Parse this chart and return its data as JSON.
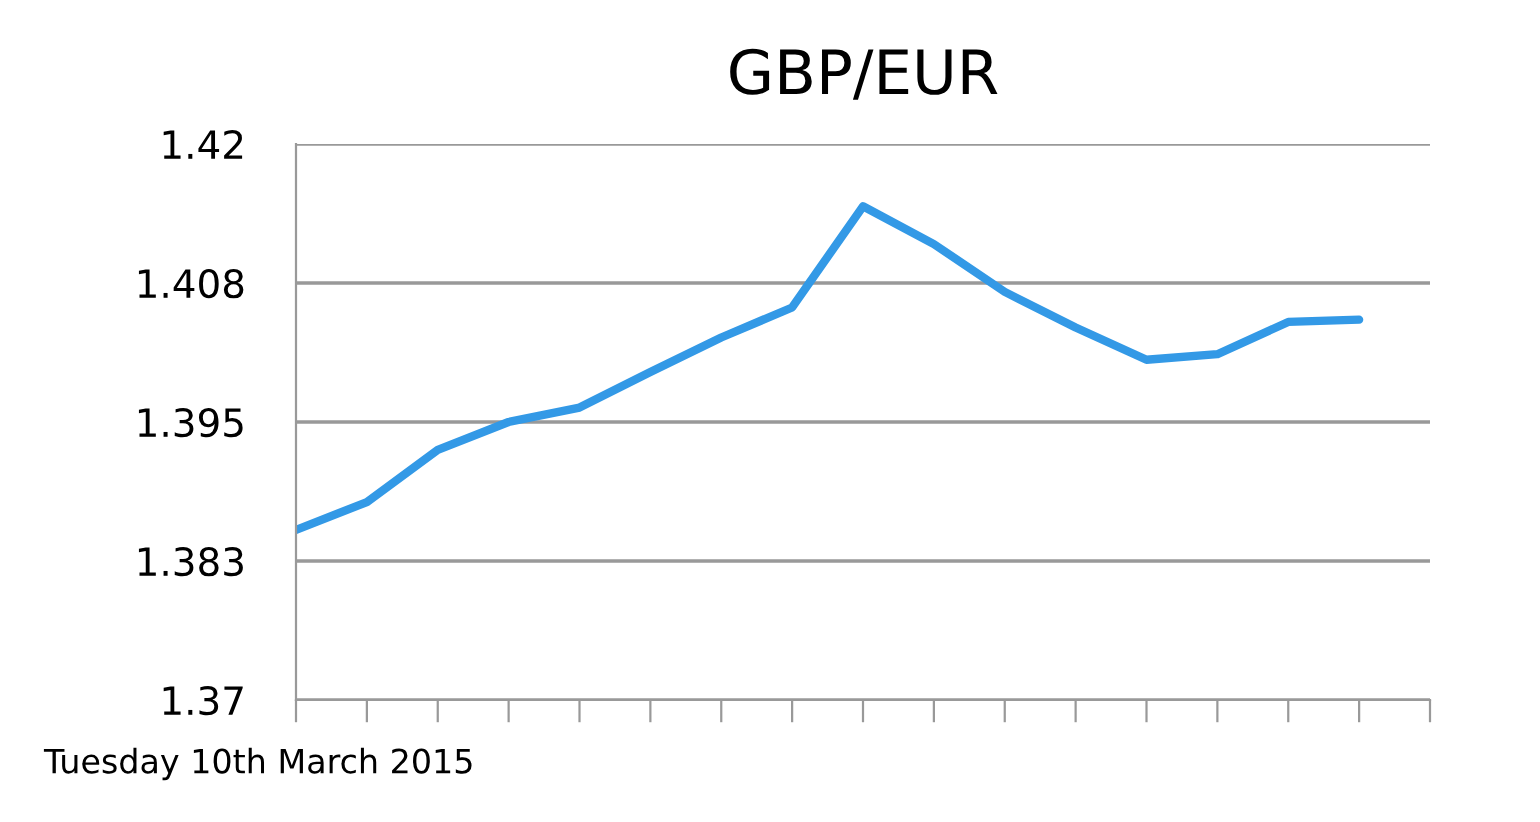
{
  "chart_data": {
    "type": "line",
    "title": "GBP/EUR",
    "xlabel": "Tuesday 10th March 2015",
    "categories": [
      null,
      null,
      null,
      null,
      null,
      null,
      null,
      null,
      null,
      null,
      null,
      null,
      null,
      null,
      null,
      null,
      null
    ],
    "series": [
      {
        "color": "#3399e6",
        "values": [
          1.3853,
          1.3878,
          1.3925,
          1.395,
          1.3963,
          1.3995,
          1.4026,
          1.4053,
          1.4144,
          1.411,
          1.4067,
          1.4035,
          1.4006,
          1.4011,
          1.404,
          1.4042,
          null
        ]
      }
    ],
    "ylim": [
      1.37,
      1.42
    ],
    "yticks": [
      {
        "value": 1.37,
        "label": "1.37"
      },
      {
        "value": 1.3825,
        "label": "1.383"
      },
      {
        "value": 1.395,
        "label": "1.395"
      },
      {
        "value": 1.4075,
        "label": "1.408"
      },
      {
        "value": 1.42,
        "label": "1.42"
      }
    ],
    "grid": "y",
    "tick_labels": "y",
    "marker": "none",
    "line_style": "solid",
    "legend": false
  }
}
